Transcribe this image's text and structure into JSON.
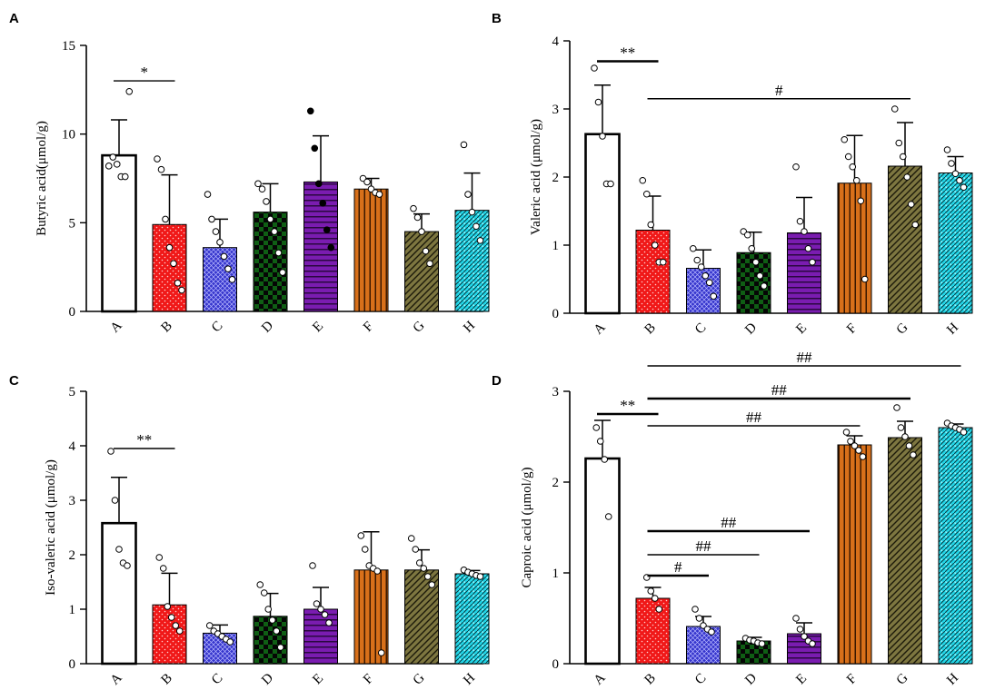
{
  "chart_data": [
    {
      "panel": "A",
      "type": "bar",
      "ylabel": "Butyric acid(μmol/g)",
      "categories": [
        "A",
        "B",
        "C",
        "D",
        "E",
        "F",
        "G",
        "H"
      ],
      "ylim": [
        0,
        15
      ],
      "yticks": [
        "0",
        "5",
        "10",
        "15"
      ],
      "ytick_values": [
        0,
        5,
        10,
        15
      ],
      "values": [
        8.8,
        4.9,
        3.6,
        5.6,
        7.3,
        6.9,
        4.5,
        5.7
      ],
      "errors": [
        2.0,
        2.8,
        1.6,
        1.6,
        2.6,
        0.6,
        1.0,
        2.1
      ],
      "points": [
        [
          8.2,
          8.7,
          8.3,
          7.6,
          7.6,
          12.4
        ],
        [
          8.6,
          8.0,
          5.2,
          3.6,
          2.7,
          1.6,
          1.2
        ],
        [
          6.6,
          5.2,
          4.5,
          3.9,
          3.1,
          2.4,
          1.8
        ],
        [
          7.2,
          6.9,
          6.2,
          5.2,
          4.5,
          3.3,
          2.2
        ],
        [
          11.3,
          9.2,
          7.2,
          6.1,
          4.6,
          3.6
        ],
        [
          7.5,
          7.3,
          6.9,
          6.7,
          6.6
        ],
        [
          5.8,
          5.3,
          4.5,
          3.4,
          2.7
        ],
        [
          9.4,
          6.6,
          5.6,
          4.8,
          4.0
        ]
      ],
      "series_fill": [
        "#ffffff",
        "#f01818",
        "#3535cc",
        "#0f5e14",
        "#7a1cb0",
        "#d8701a",
        "#7d7640",
        "#22d6e8"
      ],
      "sig_lines": [
        {
          "from": 0,
          "to": 1,
          "y": 13.0,
          "label": "*",
          "thick": false
        }
      ]
    },
    {
      "panel": "B",
      "type": "bar",
      "ylabel": "Valeric acid (μmol/g)",
      "categories": [
        "A",
        "B",
        "C",
        "D",
        "E",
        "F",
        "G",
        "H"
      ],
      "ylim": [
        0,
        4
      ],
      "yticks": [
        "0",
        "1",
        "2",
        "3",
        "4"
      ],
      "ytick_values": [
        0,
        1,
        2,
        3,
        4
      ],
      "values": [
        2.63,
        1.22,
        0.66,
        0.89,
        1.18,
        1.91,
        2.16,
        2.06
      ],
      "errors": [
        0.72,
        0.5,
        0.27,
        0.3,
        0.52,
        0.7,
        0.64,
        0.24
      ],
      "points": [
        [
          3.6,
          3.1,
          2.6,
          1.9,
          1.9
        ],
        [
          1.95,
          1.75,
          1.3,
          1.0,
          0.75,
          0.75
        ],
        [
          0.95,
          0.78,
          0.68,
          0.55,
          0.45,
          0.25
        ],
        [
          1.2,
          1.15,
          0.95,
          0.75,
          0.55,
          0.4
        ],
        [
          2.15,
          1.35,
          1.2,
          0.95,
          0.75
        ],
        [
          2.55,
          2.3,
          2.15,
          1.95,
          1.65,
          0.5
        ],
        [
          3.0,
          2.5,
          2.3,
          2.0,
          1.6,
          1.3
        ],
        [
          2.4,
          2.2,
          2.05,
          1.95,
          1.85
        ]
      ],
      "series_fill": [
        "#ffffff",
        "#f01818",
        "#3535cc",
        "#0f5e14",
        "#7a1cb0",
        "#d8701a",
        "#7d7640",
        "#22d6e8"
      ],
      "sig_lines": [
        {
          "from": 0,
          "to": 1,
          "y": 3.7,
          "label": "**",
          "thick": true
        },
        {
          "from": 1,
          "to": 6,
          "y": 3.15,
          "label": "#",
          "thick": false
        }
      ]
    },
    {
      "panel": "C",
      "type": "bar",
      "ylabel": "Iso-valeric acid (μmol/g)",
      "categories": [
        "A",
        "B",
        "C",
        "D",
        "E",
        "F",
        "G",
        "H"
      ],
      "ylim": [
        0,
        5
      ],
      "yticks": [
        "0",
        "1",
        "2",
        "3",
        "4",
        "5"
      ],
      "ytick_values": [
        0,
        1,
        2,
        3,
        4,
        5
      ],
      "values": [
        2.58,
        1.08,
        0.56,
        0.87,
        1.0,
        1.72,
        1.72,
        1.65
      ],
      "errors": [
        0.84,
        0.58,
        0.15,
        0.42,
        0.4,
        0.7,
        0.37,
        0.06
      ],
      "points": [
        [
          3.9,
          3.0,
          2.1,
          1.85,
          1.8
        ],
        [
          1.95,
          1.75,
          1.05,
          0.85,
          0.7,
          0.6
        ],
        [
          0.7,
          0.6,
          0.55,
          0.5,
          0.45,
          0.4
        ],
        [
          1.45,
          1.3,
          1.0,
          0.8,
          0.6,
          0.3
        ],
        [
          1.8,
          1.1,
          1.0,
          0.9,
          0.75
        ],
        [
          2.35,
          2.1,
          1.8,
          1.75,
          1.7,
          0.2
        ],
        [
          2.3,
          2.1,
          1.85,
          1.75,
          1.6,
          1.45
        ],
        [
          1.72,
          1.68,
          1.65,
          1.62,
          1.6
        ]
      ],
      "series_fill": [
        "#ffffff",
        "#f01818",
        "#3535cc",
        "#0f5e14",
        "#7a1cb0",
        "#d8701a",
        "#7d7640",
        "#22d6e8"
      ],
      "sig_lines": [
        {
          "from": 0,
          "to": 1,
          "y": 3.95,
          "label": "**",
          "thick": false
        }
      ]
    },
    {
      "panel": "D",
      "type": "bar",
      "ylabel": "Caproic acid (μmol/g)",
      "categories": [
        "A",
        "B",
        "C",
        "D",
        "E",
        "F",
        "G",
        "H"
      ],
      "ylim": [
        0,
        3
      ],
      "yticks": [
        "0",
        "1",
        "2",
        "3"
      ],
      "ytick_values": [
        0,
        1,
        2,
        3
      ],
      "values": [
        2.26,
        0.72,
        0.41,
        0.25,
        0.33,
        2.41,
        2.49,
        2.6
      ],
      "errors": [
        0.42,
        0.12,
        0.11,
        0.04,
        0.12,
        0.1,
        0.18,
        0.04
      ],
      "points": [
        [
          2.6,
          2.45,
          2.25,
          1.62
        ],
        [
          0.95,
          0.8,
          0.72,
          0.6
        ],
        [
          0.6,
          0.5,
          0.42,
          0.38,
          0.35
        ],
        [
          0.28,
          0.26,
          0.25,
          0.23,
          0.22
        ],
        [
          0.5,
          0.38,
          0.3,
          0.25,
          0.22
        ],
        [
          2.55,
          2.45,
          2.4,
          2.35,
          2.28
        ],
        [
          2.82,
          2.6,
          2.5,
          2.4,
          2.3
        ],
        [
          2.65,
          2.62,
          2.6,
          2.58,
          2.55
        ]
      ],
      "series_fill": [
        "#ffffff",
        "#f01818",
        "#3535cc",
        "#0f5e14",
        "#7a1cb0",
        "#d8701a",
        "#7d7640",
        "#22d6e8"
      ],
      "sig_lines": [
        {
          "from": 0,
          "to": 1,
          "y": 2.75,
          "label": "**",
          "thick": true
        },
        {
          "from": 1,
          "to": 7,
          "y": 3.28,
          "label": "##",
          "thick": false
        },
        {
          "from": 1,
          "to": 6,
          "y": 2.92,
          "label": "##",
          "thick": true
        },
        {
          "from": 1,
          "to": 5,
          "y": 2.62,
          "label": "##",
          "thick": false
        },
        {
          "from": 1,
          "to": 4,
          "y": 1.46,
          "label": "##",
          "thick": true
        },
        {
          "from": 1,
          "to": 3,
          "y": 1.2,
          "label": "##",
          "thick": false
        },
        {
          "from": 1,
          "to": 2,
          "y": 0.97,
          "label": "#",
          "thick": true
        }
      ]
    }
  ]
}
